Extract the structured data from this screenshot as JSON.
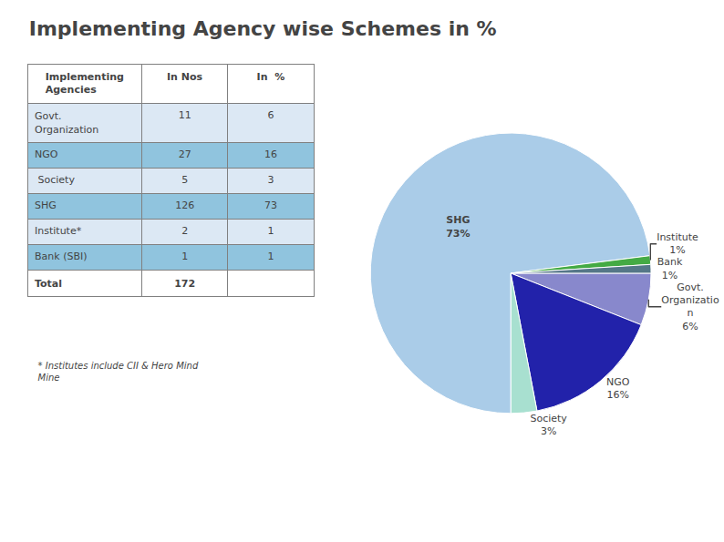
{
  "chart_data": [
    {
      "type": "table",
      "columns": [
        "Implementing\nAgencies",
        "In Nos",
        "In  %"
      ],
      "rows": [
        [
          "Govt.\nOrganization",
          "11",
          "6"
        ],
        [
          "NGO",
          "27",
          "16"
        ],
        [
          " Society",
          "5",
          "3"
        ],
        [
          "SHG",
          "126",
          "73"
        ],
        [
          "Institute*",
          "2",
          "1"
        ],
        [
          "Bank (SBI)",
          "1",
          "1"
        ]
      ],
      "total": [
        "Total",
        "172"
      ],
      "colors": [
        "#dce8f4",
        "#90c4de",
        "#dce8f4",
        "#90c4de",
        "#dce8f4",
        "#90c4de"
      ],
      "annotations": [
        "   * Institutes include CII & Hero Mind\n   Mine"
      ]
    },
    {
      "type": "pie",
      "title": "Implementing Agency wise Schemes in %",
      "categories": [
        "Govt.\nOrganizatio\nn",
        "NGO",
        "Society",
        "SHG",
        "Institute",
        "Bank"
      ],
      "values": [
        6,
        16,
        3,
        73,
        1,
        1
      ],
      "value_labels": [
        "6%",
        "16%",
        "3%",
        "73%",
        "1%",
        "1%"
      ],
      "data_labels": true,
      "colors": [
        "#8888cc",
        "#2222aa",
        "#a8e0d0",
        "#aacce8",
        "#44aa44",
        "#557788"
      ]
    }
  ]
}
